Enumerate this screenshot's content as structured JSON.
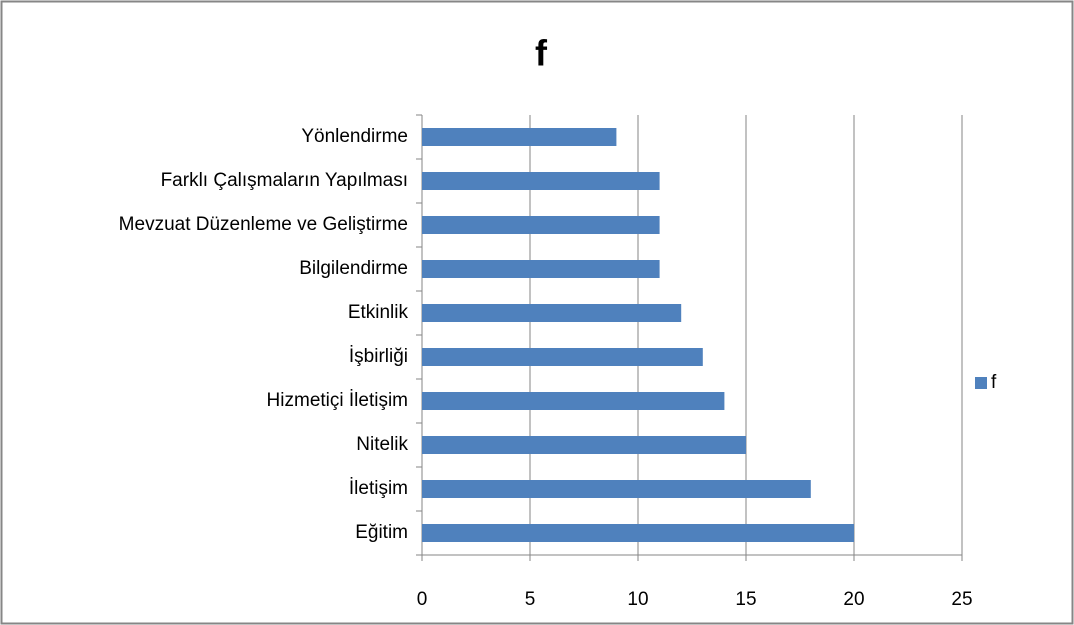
{
  "chart_data": {
    "type": "bar",
    "orientation": "horizontal",
    "title": "f",
    "categories": [
      "Yönlendirme",
      "Farklı Çalışmaların Yapılması",
      "Mevzuat Düzenleme ve Geliştirme",
      "Bilgilendirme",
      "Etkinlik",
      "İşbirliği",
      "Hizmetiçi İletişim",
      "Nitelik",
      "İletişim",
      "Eğitim"
    ],
    "series": [
      {
        "name": "f",
        "color": "#4f81bd",
        "values": [
          9,
          11,
          11,
          11,
          12,
          13,
          14,
          15,
          18,
          20
        ]
      }
    ],
    "xlim": [
      0,
      25
    ],
    "xticks": [
      0,
      5,
      10,
      15,
      20,
      25
    ],
    "grid": true,
    "legend": "right"
  }
}
